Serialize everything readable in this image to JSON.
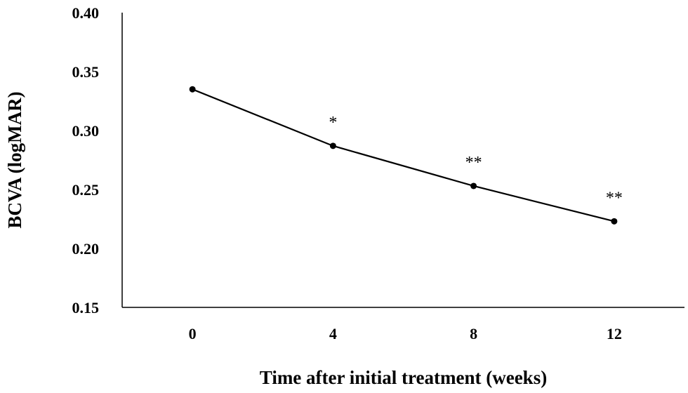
{
  "chart_data": {
    "type": "line",
    "x": [
      0,
      4,
      8,
      12
    ],
    "x_tick_labels": [
      "0",
      "4",
      "8",
      "12"
    ],
    "xlim": [
      -2,
      14
    ],
    "series": [
      {
        "values": [
          0.335,
          0.287,
          0.253,
          0.223
        ],
        "color": "#000000",
        "marker": "circle"
      }
    ],
    "annotations": [
      "",
      "*",
      "**",
      "**"
    ],
    "ylim": [
      0.15,
      0.4
    ],
    "y_ticks": [
      0.15,
      0.2,
      0.25,
      0.3,
      0.35,
      0.4
    ],
    "y_tick_labels": [
      "0.15",
      "0.20",
      "0.25",
      "0.30",
      "0.35",
      "0.40"
    ],
    "xlabel": "Time after initial treatment (weeks)",
    "ylabel": "BCVA (logMAR)",
    "grid": false,
    "legend": "none"
  }
}
